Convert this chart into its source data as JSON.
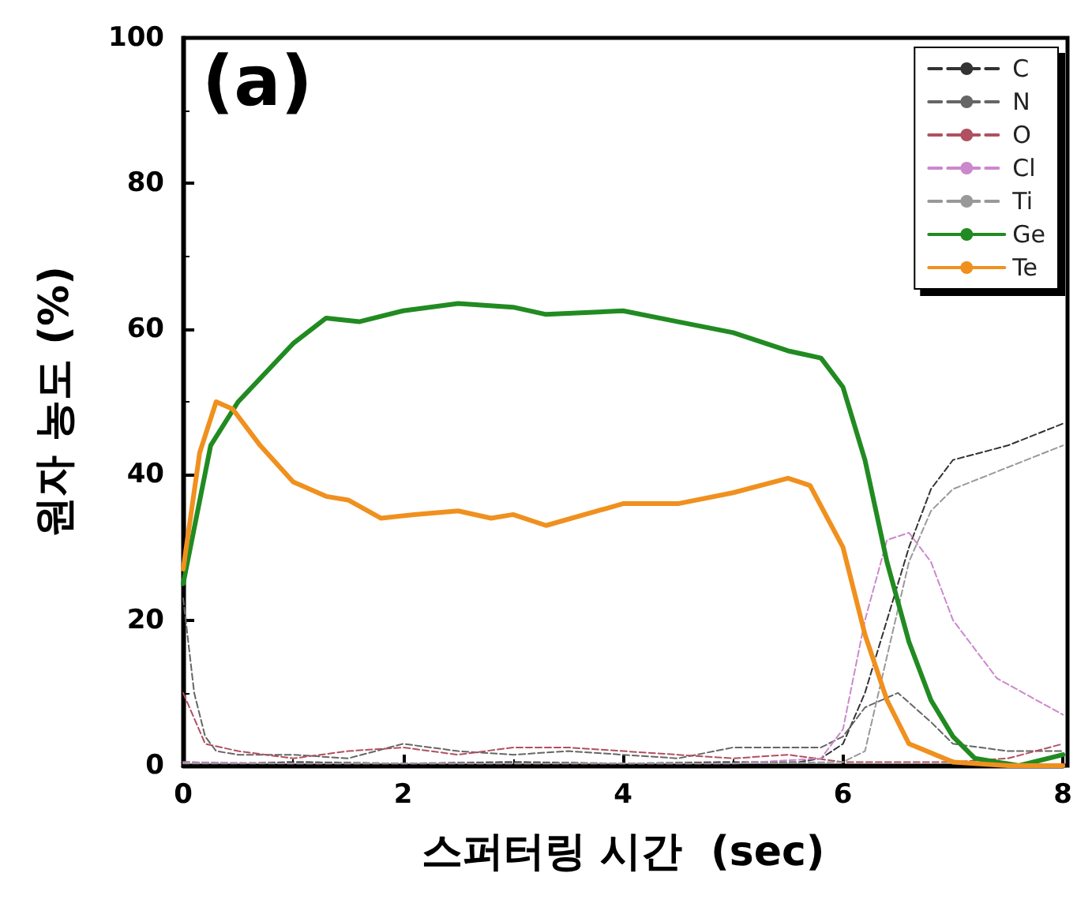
{
  "chart_data": {
    "type": "line",
    "xlabel": "스퍼터링 시간  (sec)",
    "ylabel": "원자 농도 (%)",
    "annotations": [
      "(a)"
    ],
    "xlim": [
      0,
      8
    ],
    "xticks": [
      0,
      2,
      4,
      6,
      8
    ],
    "ylim": [
      0,
      100
    ],
    "yticks": [
      0,
      20,
      40,
      60,
      80,
      100
    ],
    "grid": false,
    "legend": "top right",
    "marker": "none",
    "series": [
      {
        "name": "C",
        "color": "#333333",
        "line_style": "dashed",
        "x": [
          0,
          0.5,
          1,
          2,
          3,
          4,
          5,
          5.6,
          5.8,
          6,
          6.2,
          6.4,
          6.6,
          6.8,
          7,
          7.5,
          8
        ],
        "values": [
          0.5,
          0.3,
          0.5,
          0.3,
          0.5,
          0.3,
          0.5,
          0.5,
          1,
          3,
          10,
          20,
          30,
          38,
          42,
          44,
          47
        ]
      },
      {
        "name": "N",
        "color": "#666666",
        "line_style": "dashed",
        "x": [
          0,
          0.1,
          0.2,
          0.3,
          0.5,
          1,
          1.5,
          2,
          2.5,
          3,
          3.5,
          4,
          4.5,
          5,
          5.5,
          5.8,
          6,
          6.2,
          6.5,
          6.8,
          7,
          7.5,
          8
        ],
        "values": [
          23,
          10,
          4,
          2,
          1.5,
          1.5,
          1,
          3,
          2,
          1.5,
          2,
          1.5,
          1,
          2.5,
          2.5,
          2.5,
          4,
          8,
          10,
          6,
          3,
          2,
          2
        ]
      },
      {
        "name": "O",
        "color": "#b05060",
        "line_style": "dashed",
        "x": [
          0,
          0.2,
          0.5,
          1,
          1.5,
          2,
          2.5,
          3,
          3.5,
          4,
          4.5,
          5,
          5.5,
          6,
          6.5,
          7,
          7.5,
          8
        ],
        "values": [
          10,
          3,
          2,
          1,
          2,
          2.5,
          1.5,
          2.5,
          2.5,
          2,
          1.5,
          1,
          1.5,
          0.5,
          0.5,
          0.5,
          1,
          3
        ]
      },
      {
        "name": "Cl",
        "color": "#cc88cc",
        "line_style": "dashed",
        "x": [
          0,
          1,
          2,
          3,
          4,
          5,
          5.8,
          6,
          6.2,
          6.4,
          6.6,
          6.8,
          7,
          7.4,
          8
        ],
        "values": [
          0.5,
          0.3,
          0.3,
          0.3,
          0.3,
          0.3,
          1,
          5,
          20,
          31,
          32,
          28,
          20,
          12,
          7
        ]
      },
      {
        "name": "Ti",
        "color": "#999999",
        "line_style": "dashed",
        "x": [
          0,
          1,
          2,
          3,
          4,
          5,
          6,
          6.2,
          6.4,
          6.6,
          6.8,
          7,
          7.5,
          8
        ],
        "values": [
          0.3,
          0.3,
          0.3,
          0.3,
          0.3,
          0.3,
          0.5,
          2,
          15,
          28,
          35,
          38,
          41,
          44
        ]
      },
      {
        "name": "Ge",
        "color": "#218b21",
        "line_style": "solid",
        "x": [
          0,
          0.25,
          0.5,
          1,
          1.3,
          1.6,
          2,
          2.5,
          3,
          3.3,
          4,
          4.5,
          5,
          5.5,
          5.8,
          6,
          6.2,
          6.4,
          6.6,
          6.8,
          7,
          7.2,
          7.6,
          8
        ],
        "values": [
          25,
          44,
          50,
          58,
          61.5,
          61,
          62.5,
          63.5,
          63,
          62,
          62.5,
          61,
          59.5,
          57,
          56,
          52,
          42,
          28,
          17,
          9,
          4,
          1,
          0,
          1.5
        ]
      },
      {
        "name": "Te",
        "color": "#f0901e",
        "line_style": "solid",
        "x": [
          0,
          0.15,
          0.3,
          0.45,
          0.7,
          1,
          1.3,
          1.5,
          1.8,
          2.1,
          2.5,
          2.8,
          3,
          3.3,
          4,
          4.5,
          5,
          5.5,
          5.7,
          6,
          6.2,
          6.4,
          6.6,
          7,
          7.5,
          8
        ],
        "values": [
          27,
          43,
          50,
          49,
          44,
          39,
          37,
          36.5,
          34,
          34.5,
          35,
          34,
          34.5,
          33,
          36,
          36,
          37.5,
          39.5,
          38.5,
          30,
          18,
          9,
          3,
          0.5,
          0,
          0
        ]
      }
    ]
  }
}
